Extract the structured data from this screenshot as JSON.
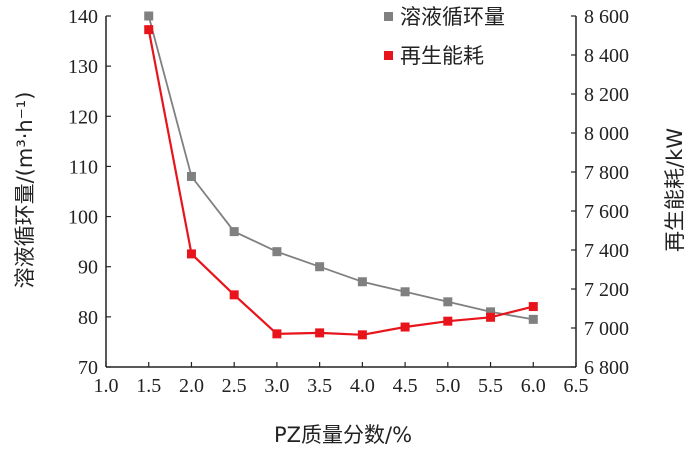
{
  "chart_data": {
    "type": "line",
    "title": "",
    "xlabel": "PZ质量分数/%",
    "ylabel_left": "溶液循环量/(m³·h⁻¹)",
    "ylabel_right": "再生能耗/kW",
    "xlim": [
      1.0,
      6.5
    ],
    "ylim_left": [
      70,
      140
    ],
    "ylim_right": [
      6800,
      8600
    ],
    "x_ticks": [
      "1.0",
      "1.5",
      "2.0",
      "2.5",
      "3.0",
      "3.5",
      "4.0",
      "4.5",
      "5.0",
      "5.5",
      "6.0",
      "6.5"
    ],
    "y_left_ticks": [
      "70",
      "80",
      "90",
      "100",
      "110",
      "120",
      "130",
      "140"
    ],
    "y_right_ticks": [
      "6 800",
      "7 000",
      "7 200",
      "7 400",
      "7 600",
      "7 800",
      "8 000",
      "8 200",
      "8 400",
      "8 600"
    ],
    "legend_position": "top-right",
    "grid": false,
    "series": [
      {
        "name": "溶液循环量",
        "axis": "left",
        "color": "#808080",
        "marker": "square",
        "x": [
          1.5,
          2.0,
          2.5,
          3.0,
          3.5,
          4.0,
          4.5,
          5.0,
          5.5,
          6.0
        ],
        "y": [
          140,
          108,
          97,
          93,
          90,
          87,
          85,
          83,
          81,
          79.5
        ]
      },
      {
        "name": "再生能耗",
        "axis": "right",
        "color": "#e8141c",
        "marker": "square",
        "x": [
          1.5,
          2.0,
          2.5,
          3.0,
          3.5,
          4.0,
          4.5,
          5.0,
          5.5,
          6.0
        ],
        "y": [
          8530,
          7380,
          7170,
          6970,
          6975,
          6965,
          7005,
          7035,
          7055,
          7110
        ]
      }
    ]
  }
}
